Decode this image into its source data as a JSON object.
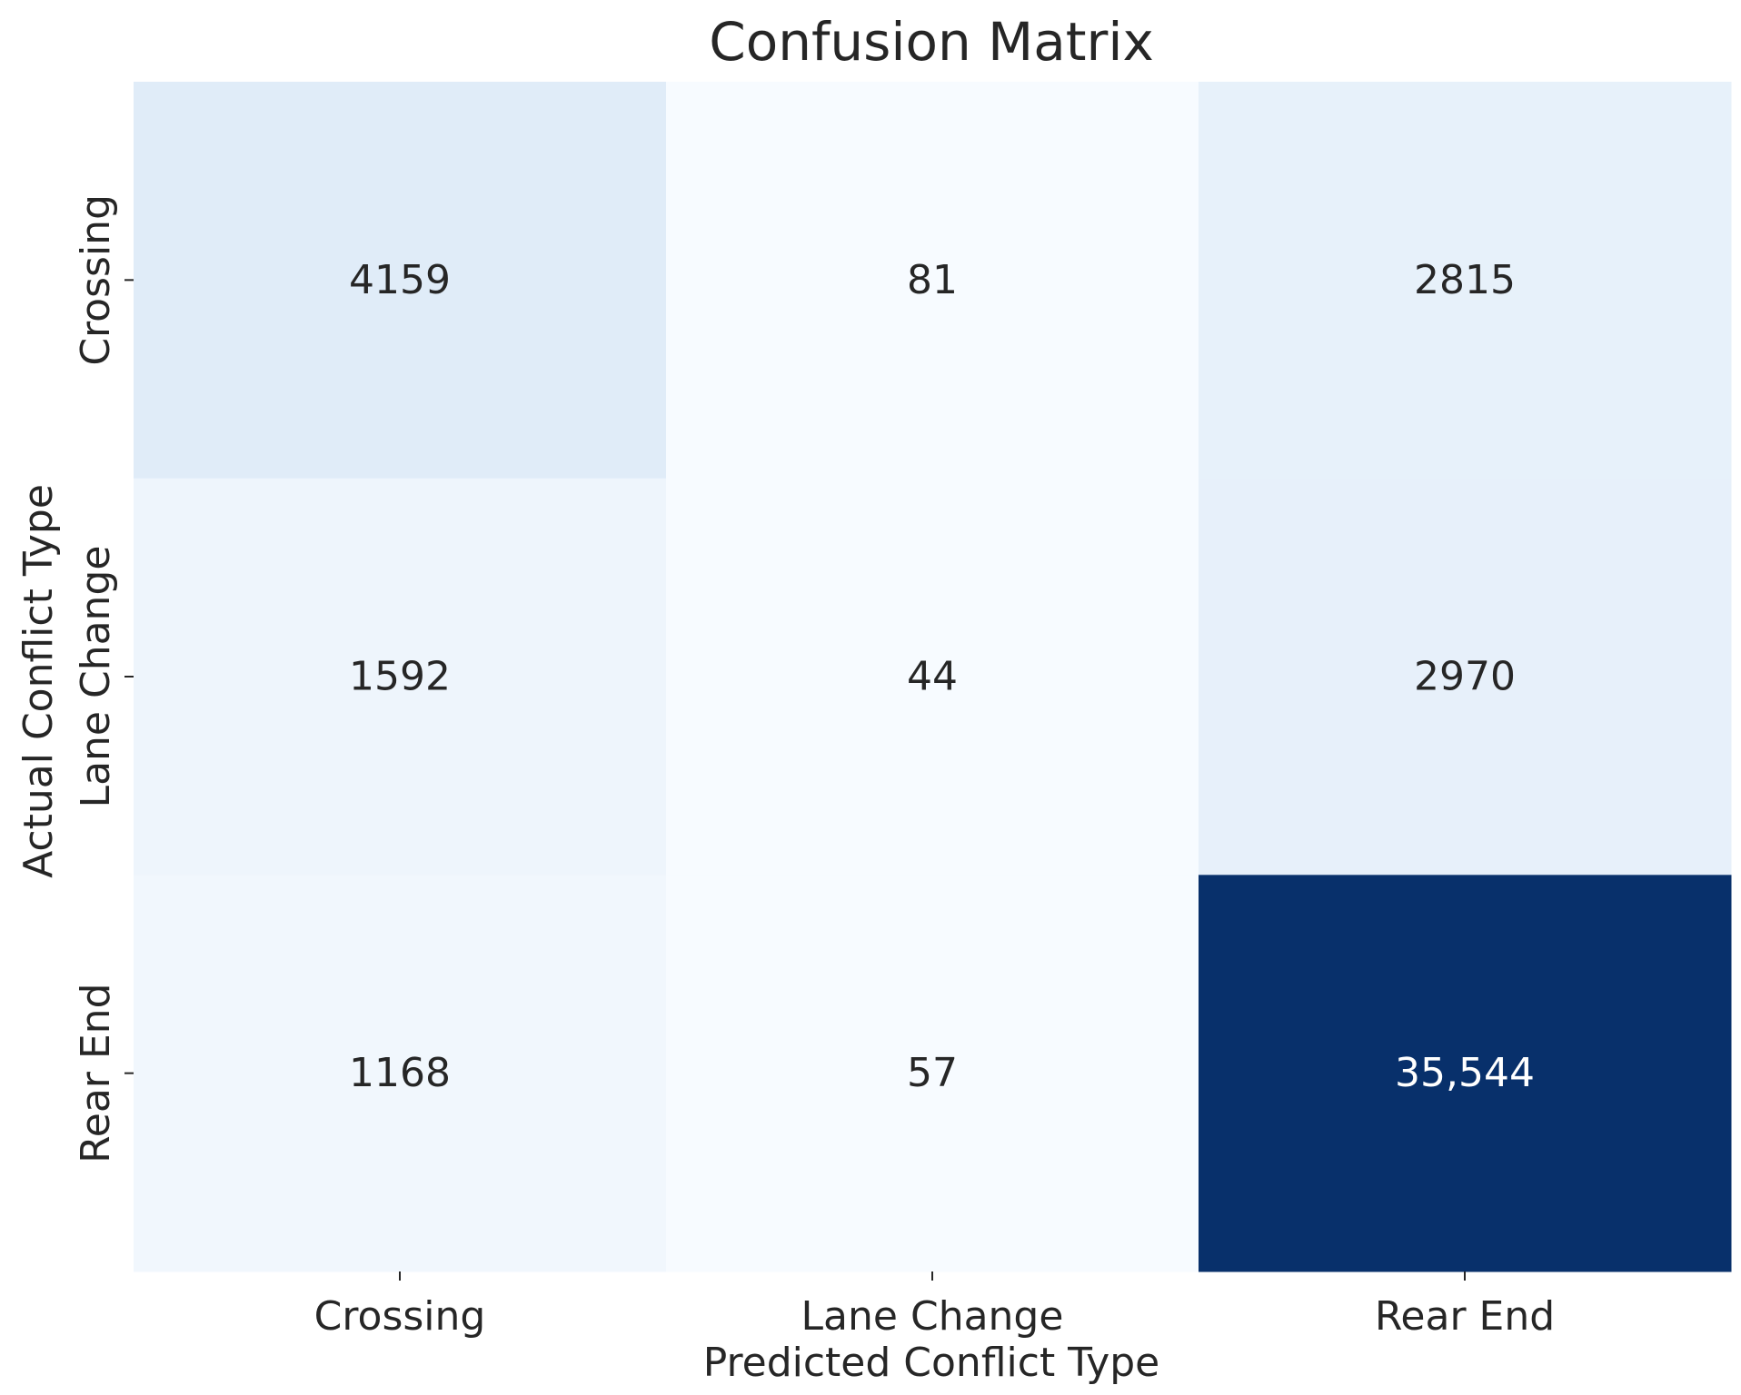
{
  "chart_data": {
    "type": "heatmap",
    "title": "Confusion Matrix",
    "xlabel": "Predicted Conflict Type",
    "ylabel": "Actual Conflict Type",
    "x_categories": [
      "Crossing",
      "Lane Change",
      "Rear End"
    ],
    "y_categories": [
      "Crossing",
      "Lane Change",
      "Rear End"
    ],
    "values": [
      [
        4159,
        81,
        2815
      ],
      [
        1592,
        44,
        2970
      ],
      [
        1168,
        57,
        35544
      ]
    ],
    "cell_labels": [
      [
        "4159",
        "81",
        "2815"
      ],
      [
        "1592",
        "44",
        "2970"
      ],
      [
        "1168",
        "57",
        "35,544"
      ]
    ],
    "colormap": "Blues",
    "colors": {
      "low": "#f7fbff",
      "high": "#08306b",
      "text_dark": "#262626",
      "text_light": "#ffffff"
    },
    "colorbar": false,
    "grid": false
  }
}
